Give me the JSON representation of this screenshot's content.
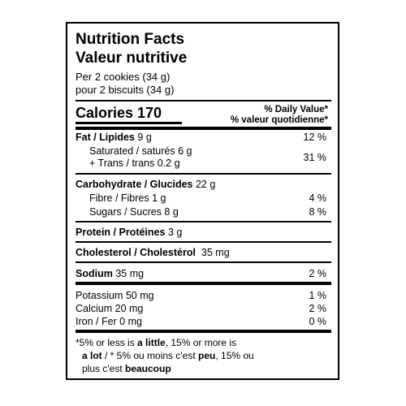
{
  "title_en": "Nutrition Facts",
  "title_fr": "Valeur nutritive",
  "serving_en": "Per 2 cookies (34 g)",
  "serving_fr": "pour 2 biscuits (34 g)",
  "calories_label": "Calories 170",
  "dv_header_en": "% Daily Value*",
  "dv_header_fr": "% valeur quotidienne*",
  "fat": {
    "name": "Fat / Lipides",
    "amount": "9 g",
    "dv": "12 %"
  },
  "saturated": {
    "label": "Saturated / saturés 6 g"
  },
  "trans": {
    "label": "+ Trans / trans 0.2 g",
    "dv": "31 %"
  },
  "carbohydrate": {
    "name": "Carbohydrate / Glucides",
    "amount": "22 g"
  },
  "fibre": {
    "label": "Fibre / Fibres 1 g",
    "dv": "4 %"
  },
  "sugars": {
    "label": "Sugars / Sucres 8 g",
    "dv": "8 %"
  },
  "protein": {
    "name": "Protein / Protéines",
    "amount": "3 g"
  },
  "cholesterol": {
    "name": "Cholesterol / Cholestérol",
    "amount": "35 mg"
  },
  "sodium": {
    "name": "Sodium",
    "amount": "35 mg",
    "dv": "2 %"
  },
  "potassium": {
    "label": "Potassium 50 mg",
    "dv": "1 %"
  },
  "calcium": {
    "label": "Calcium 20 mg",
    "dv": "2 %"
  },
  "iron": {
    "label": "Iron / Fer 0 mg",
    "dv": "0 %"
  },
  "footnote": {
    "l1a": "*5% or less is ",
    "l1b": "a little",
    "l1c": ", 15% or more is",
    "l2a": "a lot",
    "l2b": " / * 5% ou moins c'est ",
    "l2c": "peu",
    "l2d": ", 15% ou",
    "l3a": "plus c'est ",
    "l3b": "beaucoup"
  }
}
